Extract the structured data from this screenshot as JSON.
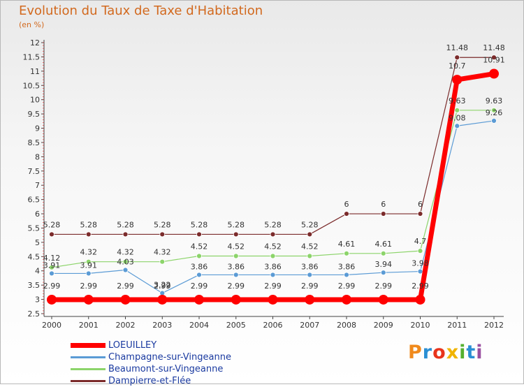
{
  "header": {
    "title": "Evolution du Taux de Taxe d'Habitation",
    "subtitle": "(en %)"
  },
  "logo": {
    "text": "Proxiti",
    "letters": [
      "P",
      "r",
      "o",
      "x",
      "i",
      "t",
      "i"
    ],
    "colors": [
      "#f08a1c",
      "#2a8fd4",
      "#e8341c",
      "#f0b400",
      "#55b030",
      "#2a8fd4",
      "#9a4fa0"
    ]
  },
  "chart_data": {
    "type": "line",
    "title": "Evolution du Taux de Taxe d'Habitation",
    "subtitle": "(en %)",
    "xlabel": "",
    "ylabel": "",
    "x": [
      "2000",
      "2001",
      "2002",
      "2003",
      "2004",
      "2005",
      "2006",
      "2007",
      "2008",
      "2009",
      "2010",
      "2011",
      "2012"
    ],
    "ylim": [
      2.5,
      12
    ],
    "yticks": [
      "2.5",
      "3",
      "3.5",
      "4",
      "4.5",
      "5",
      "5.5",
      "6",
      "6.5",
      "7",
      "7.5",
      "8",
      "8.5",
      "9",
      "9.5",
      "10",
      "10.5",
      "11",
      "11.5",
      "12"
    ],
    "grid": false,
    "legend_position": "bottom-left",
    "series": [
      {
        "name": "LOEUILLEY",
        "color": "#ff0000",
        "values": [
          2.99,
          2.99,
          2.99,
          2.99,
          2.99,
          2.99,
          2.99,
          2.99,
          2.99,
          2.99,
          2.99,
          10.7,
          10.91
        ],
        "labels": [
          "2.99",
          "2.99",
          "2.99",
          "2.99",
          "2.99",
          "2.99",
          "2.99",
          "2.99",
          "2.99",
          "2.99",
          "2.99",
          "10.7",
          "10.91"
        ]
      },
      {
        "name": "Champagne-sur-Vingeanne",
        "color": "#5b9bd5",
        "values": [
          3.91,
          3.91,
          4.03,
          3.22,
          3.86,
          3.86,
          3.86,
          3.86,
          3.86,
          3.94,
          3.98,
          9.08,
          9.26
        ],
        "labels": [
          "3.91",
          "3.91",
          "4.03",
          "3.22",
          "3.86",
          "3.86",
          "3.86",
          "3.86",
          "3.86",
          "3.94",
          "3.98",
          "9.08",
          "9.26"
        ]
      },
      {
        "name": "Beaumont-sur-Vingeanne",
        "color": "#8cd46a",
        "values": [
          4.12,
          4.32,
          4.32,
          4.32,
          4.52,
          4.52,
          4.52,
          4.52,
          4.61,
          4.61,
          4.7,
          9.63,
          9.63
        ],
        "labels": [
          "4.12",
          "4.32",
          "4.32",
          "4.32",
          "4.52",
          "4.52",
          "4.52",
          "4.52",
          "4.61",
          "4.61",
          "4.7",
          "9.63",
          "9.63"
        ]
      },
      {
        "name": "Dampierre-et-Flée",
        "color": "#7b2b2b",
        "values": [
          5.28,
          5.28,
          5.28,
          5.28,
          5.28,
          5.28,
          5.28,
          5.28,
          6,
          6,
          6,
          11.48,
          11.48
        ],
        "labels": [
          "5.28",
          "5.28",
          "5.28",
          "5.28",
          "5.28",
          "5.28",
          "5.28",
          "5.28",
          "6",
          "6",
          "6",
          "11.48",
          "11.48"
        ]
      }
    ]
  }
}
